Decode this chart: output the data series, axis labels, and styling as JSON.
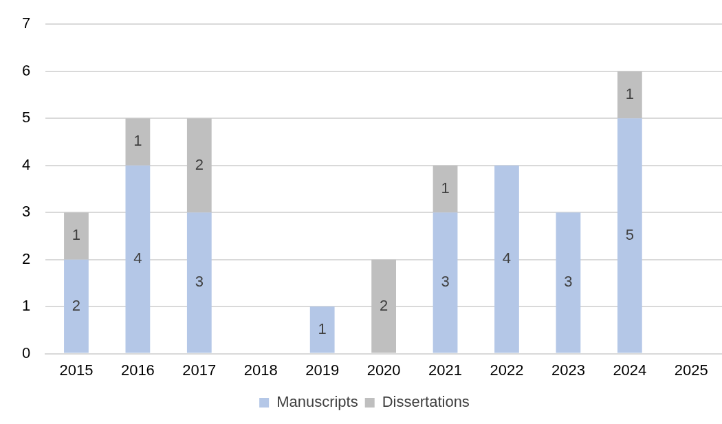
{
  "chart_data": {
    "type": "bar",
    "stacked": true,
    "categories": [
      "2015",
      "2016",
      "2017",
      "2018",
      "2019",
      "2020",
      "2021",
      "2022",
      "2023",
      "2024",
      "2025"
    ],
    "series": [
      {
        "name": "Manuscripts",
        "color": "#b4c7e7",
        "values": [
          2,
          4,
          3,
          0,
          1,
          0,
          3,
          4,
          3,
          5,
          0
        ],
        "value_labels": [
          "2",
          "4",
          "3",
          null,
          "1",
          null,
          "3",
          "4",
          "3",
          "5",
          null
        ]
      },
      {
        "name": "Dissertations",
        "color": "#bfbfbf",
        "values": [
          1,
          1,
          2,
          0,
          0,
          2,
          1,
          0,
          0,
          1,
          0
        ],
        "value_labels": [
          "1",
          "1",
          "2",
          null,
          null,
          "2",
          "1",
          null,
          null,
          "1",
          null
        ]
      }
    ],
    "ylim": [
      0,
      7
    ],
    "yticks": [
      0,
      1,
      2,
      3,
      4,
      5,
      6,
      7
    ],
    "grid": "y",
    "legend": "bottom"
  }
}
